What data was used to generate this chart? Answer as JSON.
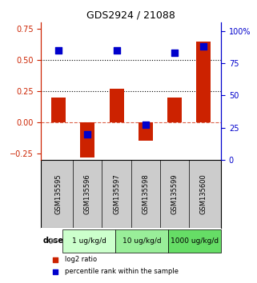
{
  "title": "GDS2924 / 21088",
  "samples": [
    "GSM135595",
    "GSM135596",
    "GSM135597",
    "GSM135598",
    "GSM135599",
    "GSM135600"
  ],
  "log2_ratio": [
    0.2,
    -0.28,
    0.27,
    -0.15,
    0.2,
    0.65
  ],
  "percentile_rank": [
    85,
    20,
    85,
    27,
    83,
    88
  ],
  "bar_color": "#cc2200",
  "square_color": "#0000cc",
  "left_ylim": [
    -0.3,
    0.8
  ],
  "right_ylim": [
    0,
    106.67
  ],
  "left_yticks": [
    0.75,
    0.5,
    0.25,
    0.0,
    -0.25
  ],
  "right_yticks": [
    100,
    75,
    50,
    25,
    0
  ],
  "hline_dotted": [
    0.5,
    0.25
  ],
  "hline_dashed": 0.0,
  "dose_groups": [
    {
      "label": "1 ug/kg/d",
      "cols": [
        0,
        1
      ],
      "color": "#ccffcc"
    },
    {
      "label": "10 ug/kg/d",
      "cols": [
        2,
        3
      ],
      "color": "#99ee99"
    },
    {
      "label": "1000 ug/kg/d",
      "cols": [
        4,
        5
      ],
      "color": "#66dd66"
    }
  ],
  "dose_label": "dose",
  "legend_red": "log2 ratio",
  "legend_blue": "percentile rank within the sample",
  "background_color": "#ffffff",
  "plot_bg_color": "#ffffff",
  "sample_bg_color": "#cccccc",
  "bar_width": 0.5
}
